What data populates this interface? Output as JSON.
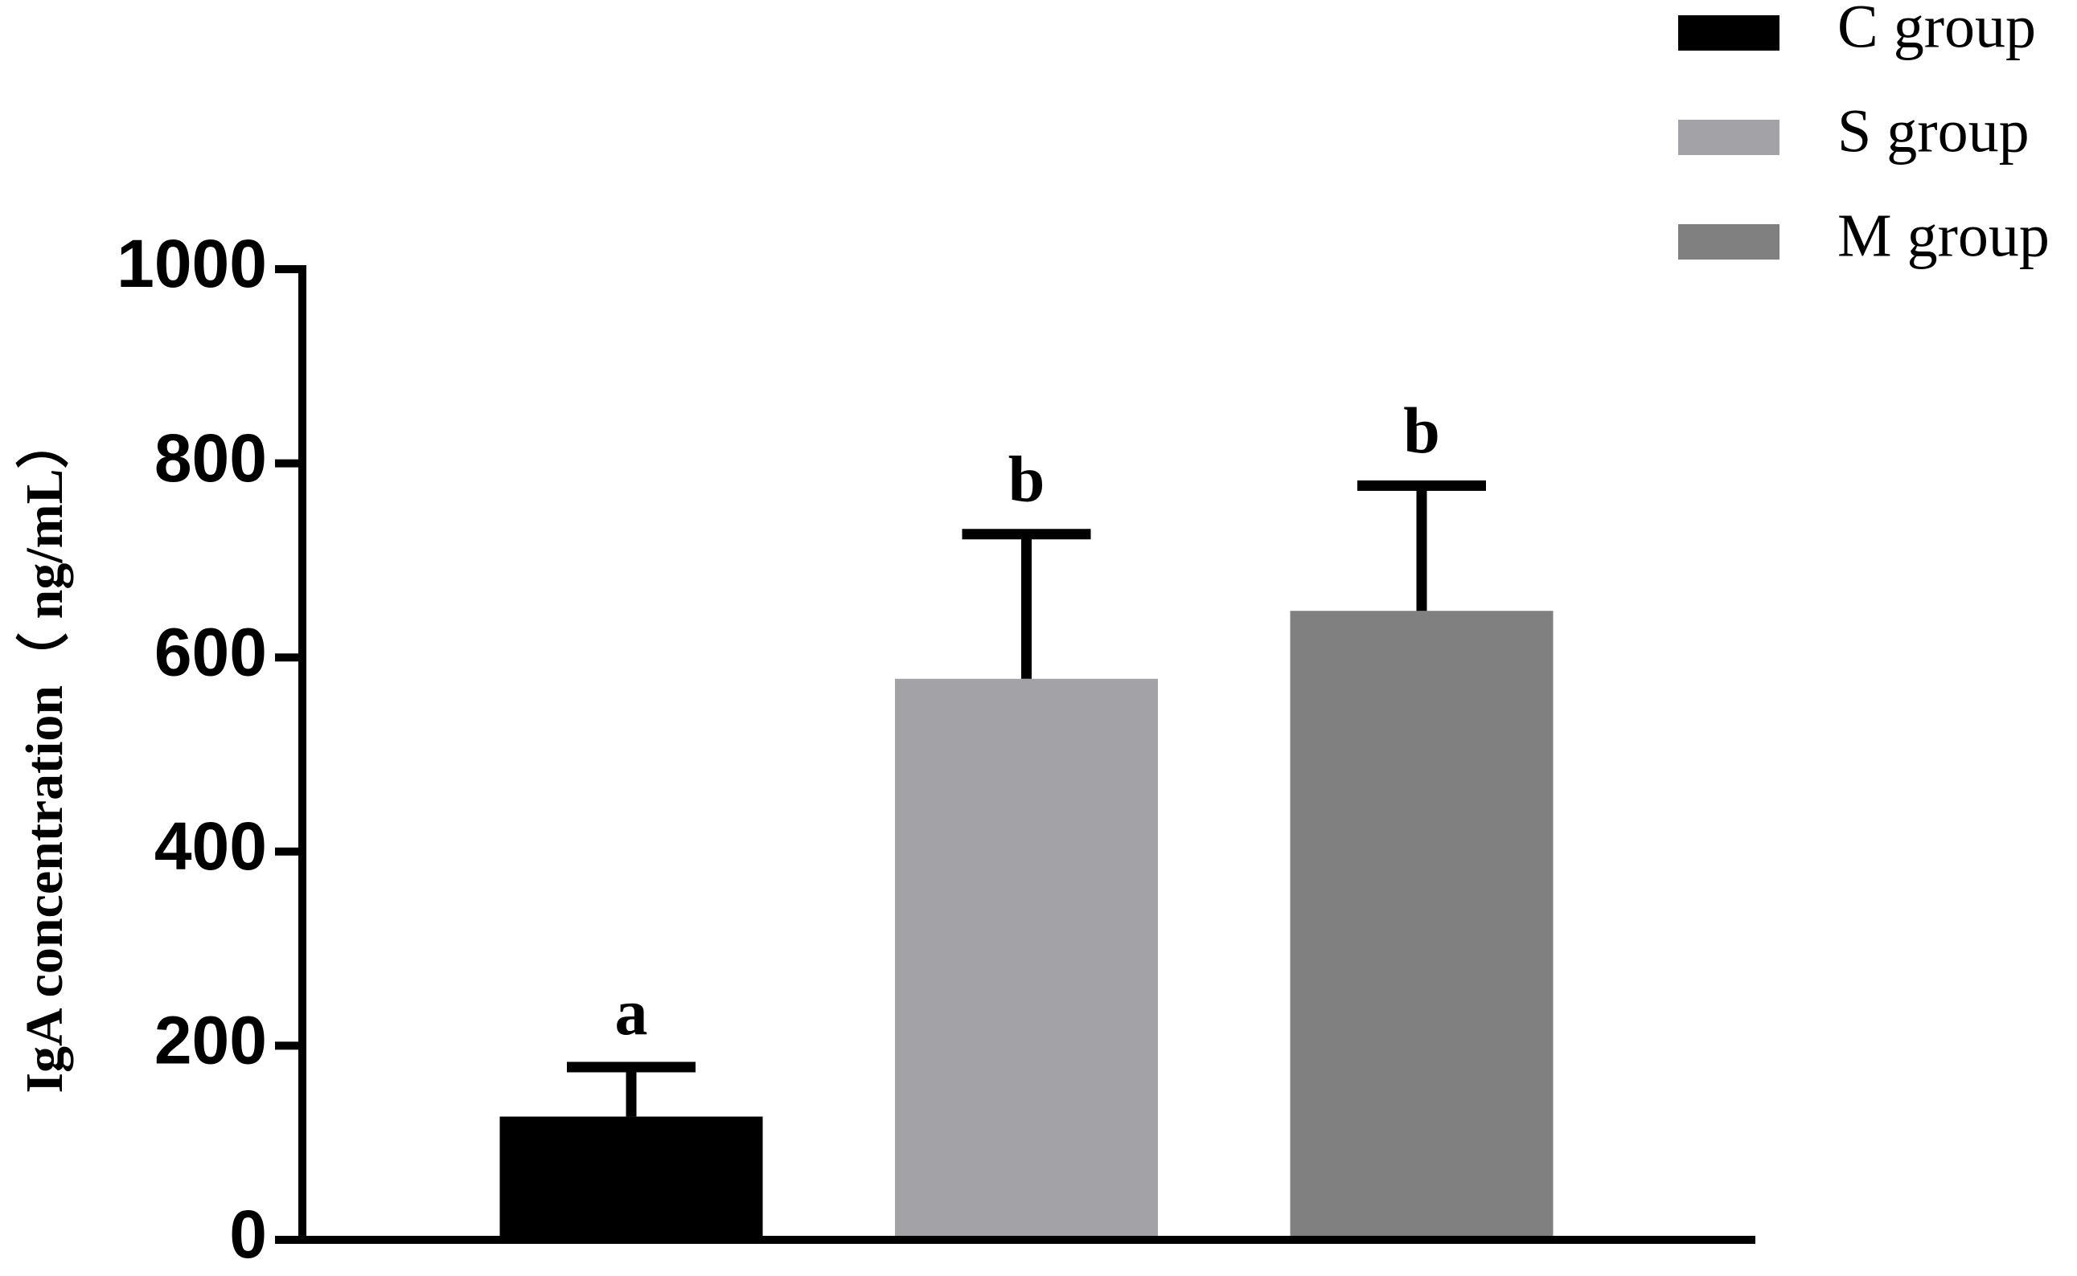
{
  "chart_data": {
    "type": "bar",
    "y_label": "IgA concentration（ ng/mL）",
    "ylim": [
      0,
      1000
    ],
    "yticks": [
      0,
      200,
      400,
      600,
      800,
      1000
    ],
    "legend": "top-right",
    "series": [
      {
        "name": "C group",
        "color": "#000000",
        "values": [
          127
        ],
        "errors": [
          51
        ],
        "annotation": "a"
      },
      {
        "name": "S group",
        "color": "#a3a3a7",
        "values": [
          578
        ],
        "errors": [
          149
        ],
        "annotation": "b"
      },
      {
        "name": "M group",
        "color": "#808080",
        "values": [
          648
        ],
        "errors": [
          129
        ],
        "annotation": "b"
      }
    ]
  }
}
